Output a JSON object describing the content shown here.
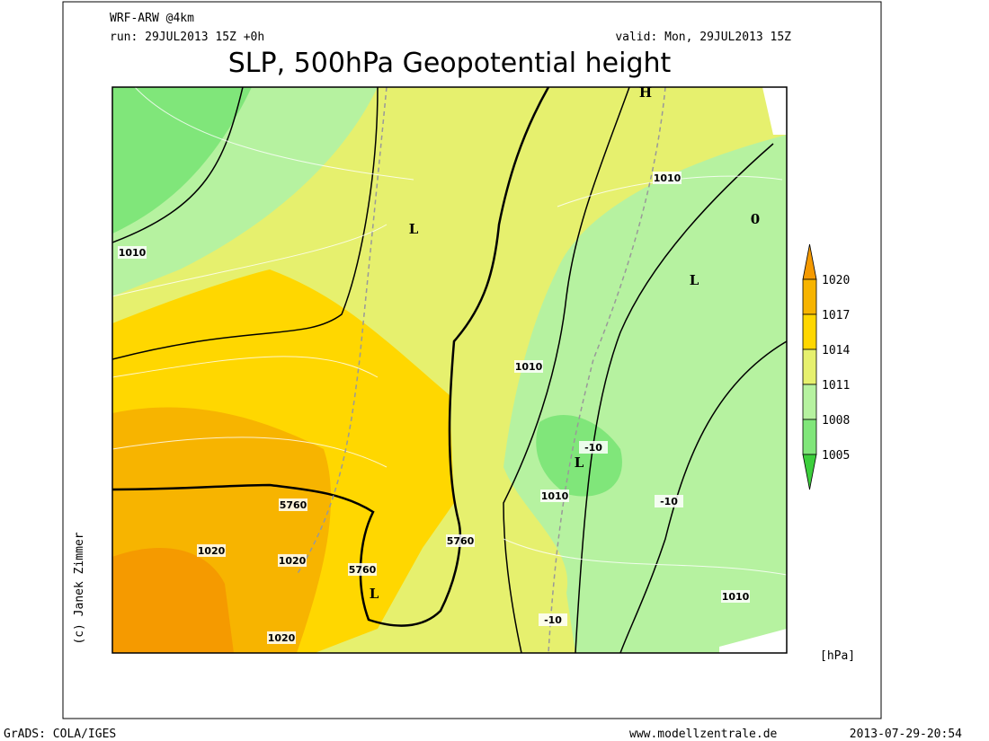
{
  "header": {
    "model": "WRF-ARW @4km",
    "run": "run: 29JUL2013 15Z +0h",
    "valid": "valid: Mon, 29JUL2013 15Z",
    "title": "SLP, 500hPa Geopotential height"
  },
  "map": {
    "labels": [
      "1010",
      "1010",
      "1010",
      "1010",
      "1010",
      "1020",
      "1020",
      "1020",
      "5760",
      "5760",
      "5760",
      "-10",
      "-10",
      "-10",
      "L",
      "L",
      "L",
      "L",
      "H",
      "0"
    ]
  },
  "colorbar": {
    "levels": [
      1020,
      1017,
      1014,
      1011,
      1008,
      1005
    ],
    "colors": [
      "#f59a00",
      "#f7b400",
      "#ffd700",
      "#e6f06e",
      "#b6f2a0",
      "#80e67a",
      "#3ccf3c"
    ],
    "unit": "[hPa]"
  },
  "credit": "(c) Janek Zimmer",
  "footer": {
    "software": "GrADS: COLA/IGES",
    "site": "www.modellzentrale.de",
    "timestamp": "2013-07-29-20:54"
  }
}
